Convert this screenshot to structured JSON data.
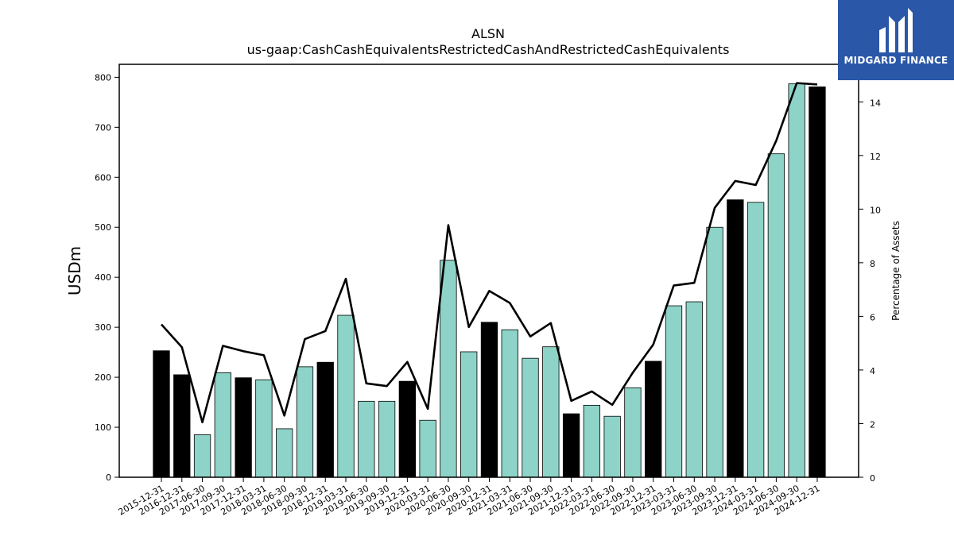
{
  "chart_data": {
    "type": "bar",
    "title": "ALSN",
    "subtitle": "us-gaap:CashCashEquivalentsRestrictedCashAndRestrictedCashEquivalents",
    "ylabel": "USDm",
    "y2label": "Percentage of Assets",
    "ylim": [
      0,
      826
    ],
    "y2lim": [
      0,
      15.4
    ],
    "yticks": [
      0,
      100,
      200,
      300,
      400,
      500,
      600,
      700,
      800
    ],
    "y2ticks": [
      0,
      2,
      4,
      6,
      8,
      10,
      12,
      14
    ],
    "categories": [
      "2015-12-31",
      "2016-12-31",
      "2017-06-30",
      "2017-09-30",
      "2017-12-31",
      "2018-03-31",
      "2018-06-30",
      "2018-09-30",
      "2018-12-31",
      "2019-03-31",
      "2019-06-30",
      "2019-09-30",
      "2019-12-31",
      "2020-03-31",
      "2020-06-30",
      "2020-09-30",
      "2020-12-31",
      "2021-03-31",
      "2021-06-30",
      "2021-09-30",
      "2021-12-31",
      "2022-03-31",
      "2022-06-30",
      "2022-09-30",
      "2022-12-31",
      "2023-03-31",
      "2023-06-30",
      "2023-09-30",
      "2023-12-31",
      "2024-03-31",
      "2024-06-30",
      "2024-09-30",
      "2024-12-31"
    ],
    "series": [
      {
        "type": "bar",
        "axis": "left",
        "values": [
          253,
          205,
          85,
          209,
          199,
          195,
          97,
          221,
          230,
          324,
          152,
          152,
          192,
          114,
          434,
          251,
          310,
          295,
          238,
          261,
          127,
          144,
          122,
          179,
          232,
          343,
          351,
          500,
          555,
          550,
          647,
          787,
          781
        ],
        "annual": [
          true,
          true,
          false,
          false,
          true,
          false,
          false,
          false,
          true,
          false,
          false,
          false,
          true,
          false,
          false,
          false,
          true,
          false,
          false,
          false,
          true,
          false,
          false,
          false,
          true,
          false,
          false,
          false,
          true,
          false,
          false,
          false,
          true
        ],
        "colors": {
          "annual": "#000000",
          "quarterly": "#8dd3c7"
        }
      },
      {
        "type": "line",
        "axis": "right",
        "color": "#000000",
        "values": [
          5.7,
          4.85,
          2.05,
          4.9,
          4.7,
          4.55,
          2.3,
          5.15,
          5.45,
          7.4,
          3.5,
          3.4,
          4.3,
          2.55,
          9.4,
          5.6,
          6.95,
          6.5,
          5.25,
          5.75,
          2.85,
          3.2,
          2.7,
          3.9,
          4.95,
          7.15,
          7.25,
          10.05,
          11.05,
          10.9,
          12.55,
          14.7,
          14.65
        ]
      }
    ],
    "grid": false,
    "legend": "none"
  },
  "branding": {
    "logo_text": "MIDGARD FINANCE",
    "logo_color": "#2a57a8"
  }
}
